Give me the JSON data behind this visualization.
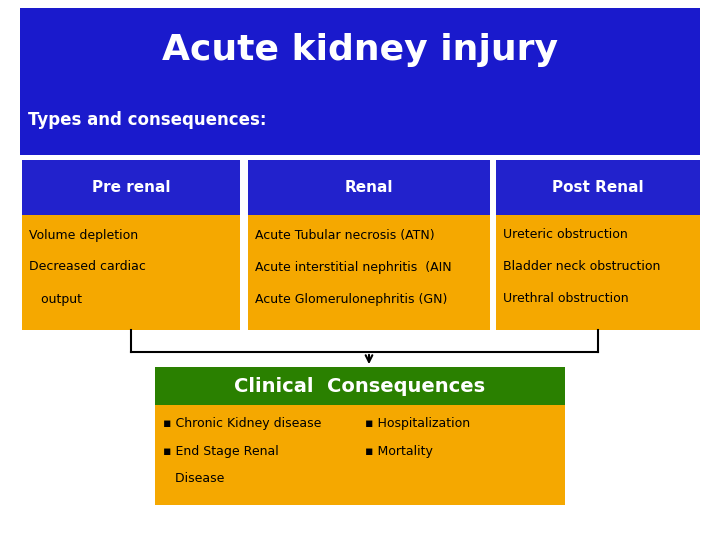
{
  "title": "Acute kidney injury",
  "subtitle": "Types and consequences:",
  "header_bg": "#1a1acc",
  "title_color": "#ffffff",
  "subtitle_color": "#ffffff",
  "col_headers": [
    "Pre renal",
    "Renal",
    "Post Renal"
  ],
  "col_header_bg": "#2222cc",
  "col_header_color": "#ffffff",
  "col_content_bg": "#f5a800",
  "col_content_color": "#000000",
  "col_contents": [
    [
      "Volume depletion",
      "Decreased cardiac",
      "   output"
    ],
    [
      "Acute Tubular necrosis (ATN)",
      "Acute interstitial nephritis  (AIN",
      "Acute Glomerulonephritis (GN)"
    ],
    [
      "Ureteric obstruction",
      "Bladder neck obstruction",
      "Urethral obstruction"
    ]
  ],
  "consequences_header": "Clinical  Consequences",
  "consequences_header_bg": "#2a8000",
  "consequences_header_color": "#ffffff",
  "consequences_content_bg": "#f5a800",
  "consequences_content_color": "#000000",
  "consequences_items_left": [
    "▪ Chronic Kidney disease",
    "▪ End Stage Renal",
    "   Disease"
  ],
  "consequences_items_right": [
    "▪ Hospitalization",
    "▪ Mortality"
  ],
  "bg_color": "#ffffff"
}
